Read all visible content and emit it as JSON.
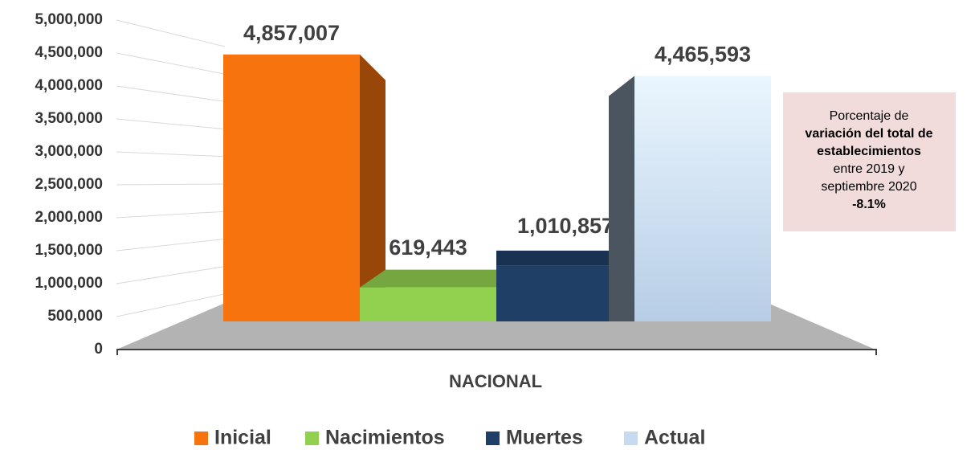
{
  "chart_data": {
    "type": "bar3d",
    "categories": [
      "NACIONAL"
    ],
    "series": [
      {
        "name": "Inicial",
        "color": "#f7730e",
        "values": [
          4857007
        ],
        "value_labels": [
          "4,857,007"
        ]
      },
      {
        "name": "Nacimientos",
        "color": "#92d050",
        "values": [
          619443
        ],
        "value_labels": [
          "619,443"
        ]
      },
      {
        "name": "Muertes",
        "color": "#203f66",
        "values": [
          1010857
        ],
        "value_labels": [
          "1,010,857"
        ]
      },
      {
        "name": "Actual",
        "color": "#c6daf0",
        "values": [
          4465593
        ],
        "value_labels": [
          "4,465,593"
        ]
      }
    ],
    "ylim": [
      0,
      5000000
    ],
    "yticks": [
      0,
      {
        "value": 500000,
        "label": "500,000"
      },
      {
        "value": 1000000,
        "label": "1,000,000"
      },
      {
        "value": 1500000,
        "label": "1,500,000"
      },
      {
        "value": 2000000,
        "label": "2,000,000"
      },
      {
        "value": 2500000,
        "label": "2,500,000"
      },
      {
        "value": 3000000,
        "label": "3,000,000"
      },
      {
        "value": 3500000,
        "label": "3,500,000"
      },
      {
        "value": 4000000,
        "label": "4,000,000"
      },
      {
        "value": 4500000,
        "label": "4,500,000"
      },
      {
        "value": 5000000,
        "label": "5,000,000"
      }
    ],
    "grid": true,
    "legend": "bottom",
    "annotation": {
      "lines": [
        "Porcentaje de",
        "variación del total de",
        "establecimientos",
        "entre 2019 y",
        "septiembre 2020",
        "-8.1%"
      ],
      "bold": [
        false,
        true,
        true,
        false,
        false,
        true
      ],
      "background": "#f2dcdb"
    }
  }
}
